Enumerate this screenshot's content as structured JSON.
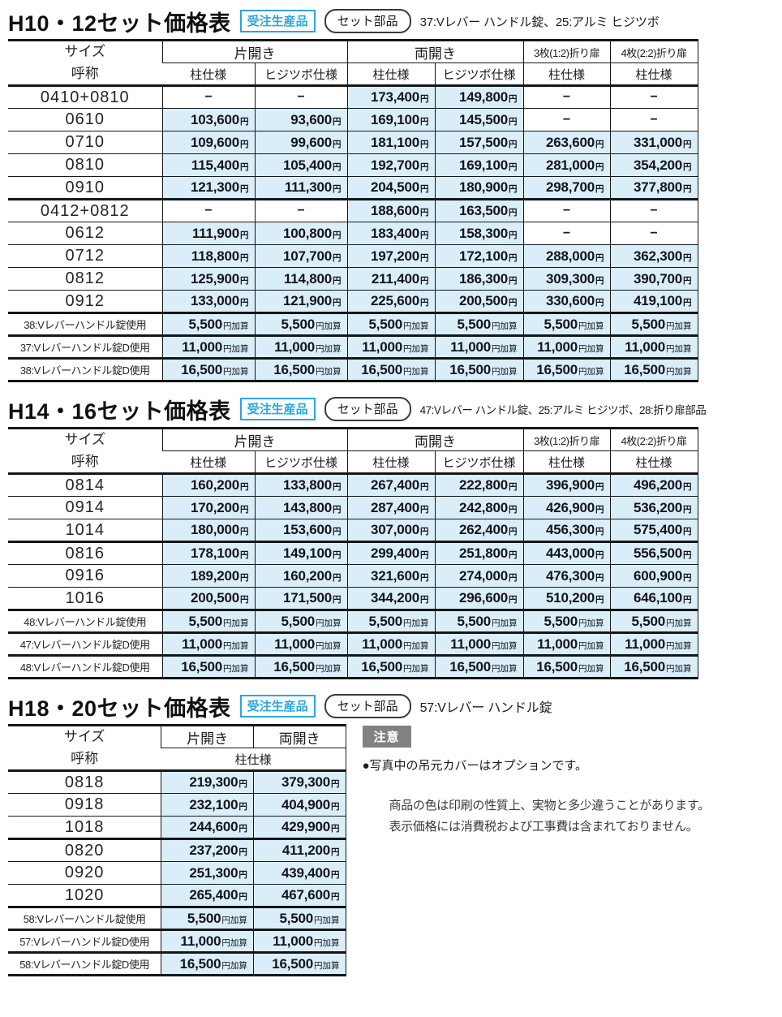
{
  "colors": {
    "cell_blue": "#daeef9",
    "badge_blue": "#2ca5e0",
    "notice_gray": "#828282",
    "line_black": "#161616"
  },
  "sections": [
    {
      "title": "H10・12セット価格表",
      "made_to_order_badge": "受注生産品",
      "set_parts_badge": "セット部品",
      "set_parts_note": "37:Vレバー ハンドル錠、25:アルミ ヒジツボ",
      "table": {
        "size_header": [
          "サイズ",
          "呼称"
        ],
        "groups": [
          {
            "label": "片開き",
            "subcols": [
              "柱仕様",
              "ヒジツボ仕様"
            ]
          },
          {
            "label": "両開き",
            "subcols": [
              "柱仕様",
              "ヒジツボ仕様"
            ]
          },
          {
            "label": "3枚(1:2)折り扉",
            "subcols": [
              "柱仕様"
            ],
            "small": true
          },
          {
            "label": "4枚(2:2)折り扉",
            "subcols": [
              "柱仕様"
            ],
            "small": true
          }
        ],
        "rows": [
          {
            "name": "0410+0810",
            "cells": [
              "−",
              "−",
              "173,400円",
              "149,800円",
              "−",
              "−"
            ]
          },
          {
            "name": "0610",
            "cells": [
              "103,600円",
              "93,600円",
              "169,100円",
              "145,500円",
              "−",
              "−"
            ]
          },
          {
            "name": "0710",
            "cells": [
              "109,600円",
              "99,600円",
              "181,100円",
              "157,500円",
              "263,600円",
              "331,000円"
            ]
          },
          {
            "name": "0810",
            "cells": [
              "115,400円",
              "105,400円",
              "192,700円",
              "169,100円",
              "281,000円",
              "354,200円"
            ]
          },
          {
            "name": "0910",
            "cells": [
              "121,300円",
              "111,300円",
              "204,500円",
              "180,900円",
              "298,700円",
              "377,800円"
            ]
          },
          {
            "name": "0412+0812",
            "thick": true,
            "cells": [
              "−",
              "−",
              "188,600円",
              "163,500円",
              "−",
              "−"
            ]
          },
          {
            "name": "0612",
            "cells": [
              "111,900円",
              "100,800円",
              "183,400円",
              "158,300円",
              "−",
              "−"
            ]
          },
          {
            "name": "0712",
            "cells": [
              "118,800円",
              "107,700円",
              "197,200円",
              "172,100円",
              "288,000円",
              "362,300円"
            ]
          },
          {
            "name": "0812",
            "cells": [
              "125,900円",
              "114,800円",
              "211,400円",
              "186,300円",
              "309,300円",
              "390,700円"
            ]
          },
          {
            "name": "0912",
            "cells": [
              "133,000円",
              "121,900円",
              "225,600円",
              "200,500円",
              "330,600円",
              "419,100円"
            ]
          },
          {
            "name": "38:Vレバーハンドル錠使用",
            "addon": true,
            "thick": true,
            "cells": [
              "5,500円加算",
              "5,500円加算",
              "5,500円加算",
              "5,500円加算",
              "5,500円加算",
              "5,500円加算"
            ]
          },
          {
            "name": "37:Vレバーハンドル錠D使用",
            "addon": true,
            "thick": true,
            "cells": [
              "11,000円加算",
              "11,000円加算",
              "11,000円加算",
              "11,000円加算",
              "11,000円加算",
              "11,000円加算"
            ]
          },
          {
            "name": "38:Vレバーハンドル錠D使用",
            "addon": true,
            "thick": true,
            "cells": [
              "16,500円加算",
              "16,500円加算",
              "16,500円加算",
              "16,500円加算",
              "16,500円加算",
              "16,500円加算"
            ]
          }
        ]
      }
    },
    {
      "title": "H14・16セット価格表",
      "made_to_order_badge": "受注生産品",
      "set_parts_badge": "セット部品",
      "set_parts_note": "47:Vレバー ハンドル錠、25:アルミ ヒジツボ、28:折り扉部品",
      "table": {
        "size_header": [
          "サイズ",
          "呼称"
        ],
        "groups": [
          {
            "label": "片開き",
            "subcols": [
              "柱仕様",
              "ヒジツボ仕様"
            ]
          },
          {
            "label": "両開き",
            "subcols": [
              "柱仕様",
              "ヒジツボ仕様"
            ]
          },
          {
            "label": "3枚(1:2)折り扉",
            "subcols": [
              "柱仕様"
            ],
            "small": true
          },
          {
            "label": "4枚(2:2)折り扉",
            "subcols": [
              "柱仕様"
            ],
            "small": true
          }
        ],
        "rows": [
          {
            "name": "0814",
            "cells": [
              "160,200円",
              "133,800円",
              "267,400円",
              "222,800円",
              "396,900円",
              "496,200円"
            ]
          },
          {
            "name": "0914",
            "cells": [
              "170,200円",
              "143,800円",
              "287,400円",
              "242,800円",
              "426,900円",
              "536,200円"
            ]
          },
          {
            "name": "1014",
            "cells": [
              "180,000円",
              "153,600円",
              "307,000円",
              "262,400円",
              "456,300円",
              "575,400円"
            ]
          },
          {
            "name": "0816",
            "thick": true,
            "cells": [
              "178,100円",
              "149,100円",
              "299,400円",
              "251,800円",
              "443,000円",
              "556,500円"
            ]
          },
          {
            "name": "0916",
            "cells": [
              "189,200円",
              "160,200円",
              "321,600円",
              "274,000円",
              "476,300円",
              "600,900円"
            ]
          },
          {
            "name": "1016",
            "cells": [
              "200,500円",
              "171,500円",
              "344,200円",
              "296,600円",
              "510,200円",
              "646,100円"
            ]
          },
          {
            "name": "48:Vレバーハンドル錠使用",
            "addon": true,
            "thick": true,
            "cells": [
              "5,500円加算",
              "5,500円加算",
              "5,500円加算",
              "5,500円加算",
              "5,500円加算",
              "5,500円加算"
            ]
          },
          {
            "name": "47:Vレバーハンドル錠D使用",
            "addon": true,
            "thick": true,
            "cells": [
              "11,000円加算",
              "11,000円加算",
              "11,000円加算",
              "11,000円加算",
              "11,000円加算",
              "11,000円加算"
            ]
          },
          {
            "name": "48:Vレバーハンドル錠D使用",
            "addon": true,
            "thick": true,
            "cells": [
              "16,500円加算",
              "16,500円加算",
              "16,500円加算",
              "16,500円加算",
              "16,500円加算",
              "16,500円加算"
            ]
          }
        ]
      }
    },
    {
      "title": "H18・20セット価格表",
      "made_to_order_badge": "受注生産品",
      "set_parts_badge": "セット部品",
      "set_parts_note": "57:Vレバー ハンドル錠",
      "table": {
        "size_header": [
          "サイズ",
          "呼称"
        ],
        "groups": [
          {
            "label": "片開き",
            "subcols": []
          },
          {
            "label": "両開き",
            "subcols": []
          }
        ],
        "merged_spec": "柱仕様",
        "rows": [
          {
            "name": "0818",
            "cells": [
              "219,300円",
              "379,300円"
            ]
          },
          {
            "name": "0918",
            "cells": [
              "232,100円",
              "404,900円"
            ]
          },
          {
            "name": "1018",
            "cells": [
              "244,600円",
              "429,900円"
            ]
          },
          {
            "name": "0820",
            "thick": true,
            "cells": [
              "237,200円",
              "411,200円"
            ]
          },
          {
            "name": "0920",
            "cells": [
              "251,300円",
              "439,400円"
            ]
          },
          {
            "name": "1020",
            "cells": [
              "265,400円",
              "467,600円"
            ]
          },
          {
            "name": "58:Vレバーハンドル錠使用",
            "addon": true,
            "thick": true,
            "cells": [
              "5,500円加算",
              "5,500円加算"
            ]
          },
          {
            "name": "57:Vレバーハンドル錠D使用",
            "addon": true,
            "thick": true,
            "cells": [
              "11,000円加算",
              "11,000円加算"
            ]
          },
          {
            "name": "58:Vレバーハンドル錠D使用",
            "addon": true,
            "thick": true,
            "cells": [
              "16,500円加算",
              "16,500円加算"
            ]
          }
        ]
      }
    }
  ],
  "notice": {
    "label": "注意",
    "bullet": "●写真中の吊元カバーはオプションです。",
    "lines": [
      "商品の色は印刷の性質上、実物と多少違うことがあります。",
      "表示価格には消費税および工事費は含まれておりません。"
    ]
  }
}
